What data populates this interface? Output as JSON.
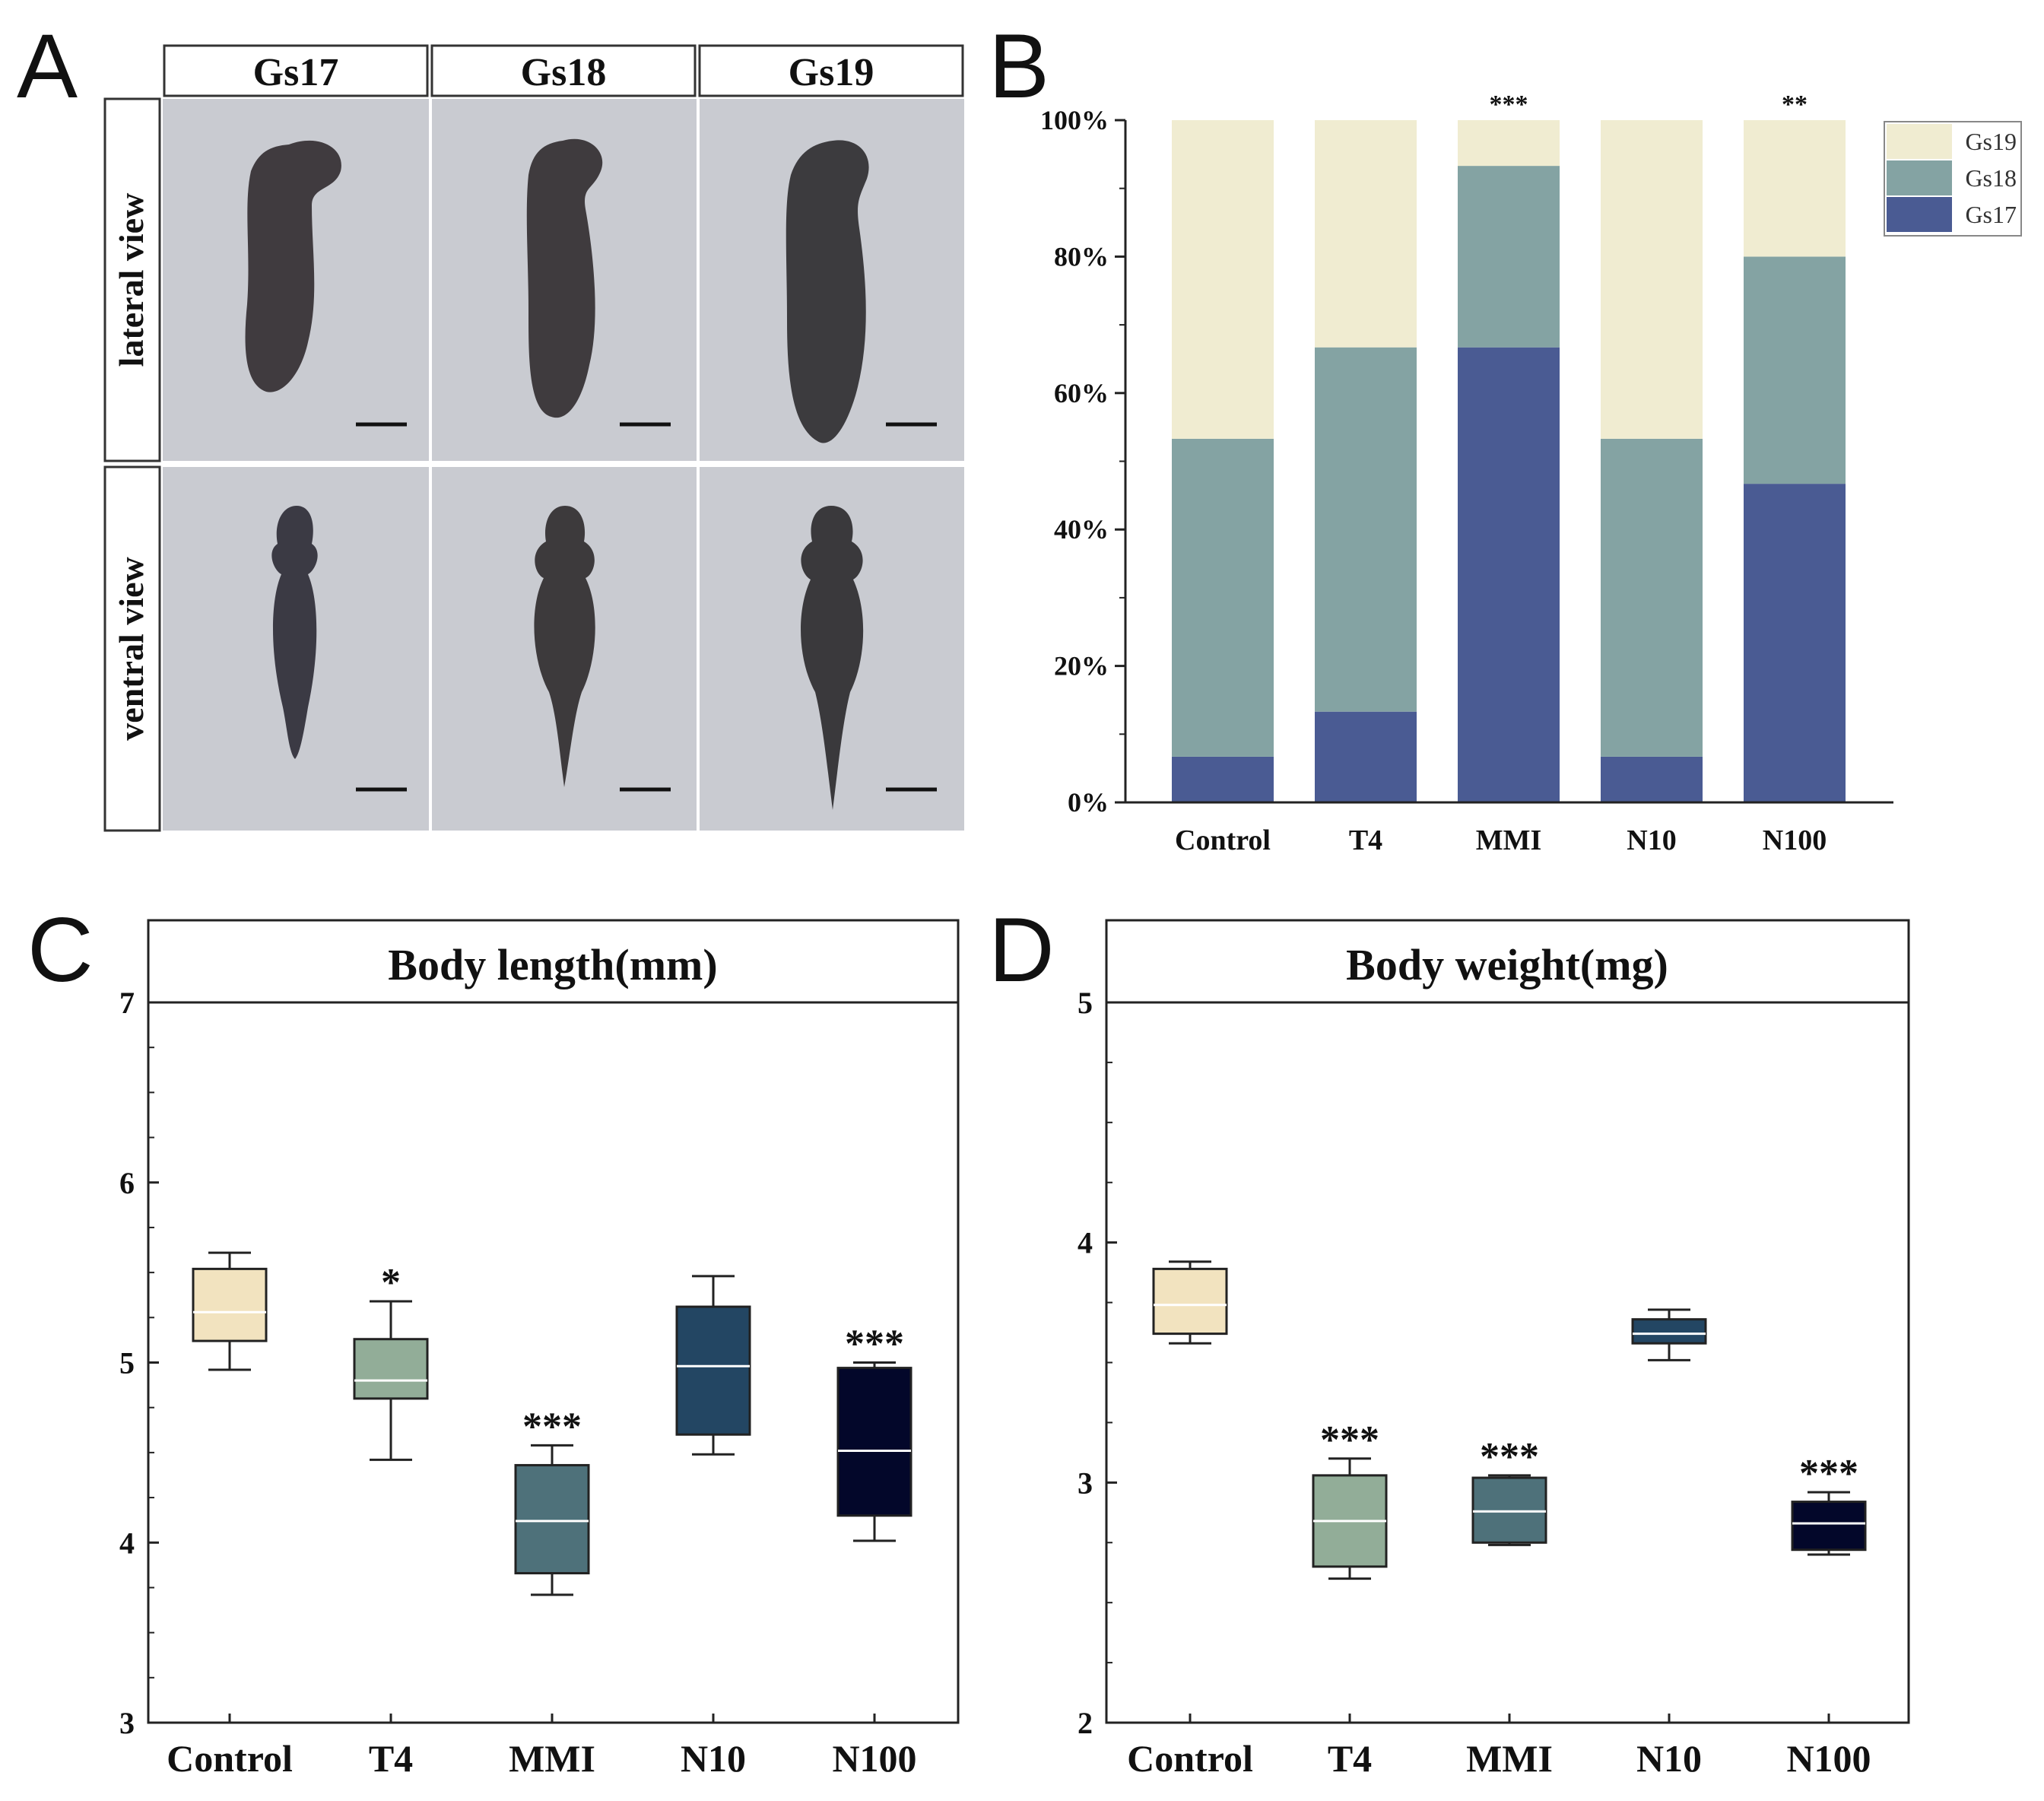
{
  "panel_labels": {
    "a": "A",
    "b": "B",
    "c": "C",
    "d": "D"
  },
  "panel_a": {
    "stages": [
      "Gs17",
      "Gs18",
      "Gs19"
    ],
    "views": [
      "lateral view",
      "ventral view"
    ]
  },
  "chart_data": [
    {
      "panel": "B",
      "type": "bar",
      "stacked": true,
      "title": "",
      "xlabel": "",
      "ylabel": "",
      "categories": [
        "Control",
        "T4",
        "MMI",
        "N10",
        "N100"
      ],
      "series": [
        {
          "name": "Gs17",
          "color": "#4a5b93",
          "values": [
            6.7,
            13.3,
            66.7,
            6.7,
            46.7
          ]
        },
        {
          "name": "Gs18",
          "color": "#84a3a3",
          "values": [
            46.6,
            53.4,
            26.6,
            46.6,
            33.3
          ]
        },
        {
          "name": "Gs19",
          "color": "#f0ecd1",
          "values": [
            46.7,
            33.3,
            6.7,
            46.7,
            20.0
          ]
        }
      ],
      "yticks": [
        "0%",
        "20%",
        "40%",
        "60%",
        "80%",
        "100%"
      ],
      "ylim": [
        0,
        100
      ],
      "significance": [
        "",
        "",
        "***",
        "",
        "**"
      ],
      "legend_position": "top-right",
      "grid": false
    },
    {
      "panel": "C",
      "type": "box",
      "title": "Body length(mm)",
      "xlabel": "",
      "ylabel": "",
      "categories": [
        "Control",
        "T4",
        "MMI",
        "N10",
        "N100"
      ],
      "colors": [
        "#f2e3bf",
        "#92ad98",
        "#4e717a",
        "#234663",
        "#03072a"
      ],
      "boxes": [
        {
          "min": 4.96,
          "q1": 5.12,
          "median": 5.28,
          "q3": 5.52,
          "max": 5.61
        },
        {
          "min": 4.46,
          "q1": 4.8,
          "median": 4.9,
          "q3": 5.13,
          "max": 5.34
        },
        {
          "min": 3.71,
          "q1": 3.83,
          "median": 4.12,
          "q3": 4.43,
          "max": 4.54
        },
        {
          "min": 4.49,
          "q1": 4.6,
          "median": 4.98,
          "q3": 5.31,
          "max": 5.48
        },
        {
          "min": 4.01,
          "q1": 4.15,
          "median": 4.51,
          "q3": 4.97,
          "max": 5.0
        }
      ],
      "significance": [
        "",
        "*",
        "***",
        "",
        "***"
      ],
      "ylim": [
        3,
        7
      ],
      "yticks": [
        "3",
        "4",
        "5",
        "6",
        "7"
      ],
      "grid": false
    },
    {
      "panel": "D",
      "type": "box",
      "title": "Body weight(mg)",
      "xlabel": "",
      "ylabel": "",
      "categories": [
        "Control",
        "T4",
        "MMI",
        "N10",
        "N100"
      ],
      "colors": [
        "#f2e3bf",
        "#92ad98",
        "#4e717a",
        "#234663",
        "#03072a"
      ],
      "boxes": [
        {
          "min": 3.58,
          "q1": 3.62,
          "median": 3.74,
          "q3": 3.89,
          "max": 3.92
        },
        {
          "min": 2.6,
          "q1": 2.65,
          "median": 2.84,
          "q3": 3.03,
          "max": 3.1
        },
        {
          "min": 2.74,
          "q1": 2.75,
          "median": 2.88,
          "q3": 3.02,
          "max": 3.03
        },
        {
          "min": 3.51,
          "q1": 3.58,
          "median": 3.62,
          "q3": 3.68,
          "max": 3.72
        },
        {
          "min": 2.7,
          "q1": 2.72,
          "median": 2.83,
          "q3": 2.92,
          "max": 2.96
        }
      ],
      "significance": [
        "",
        "***",
        "***",
        "",
        "***"
      ],
      "ylim": [
        2,
        5
      ],
      "yticks": [
        "2",
        "3",
        "4",
        "5"
      ],
      "grid": false
    }
  ]
}
